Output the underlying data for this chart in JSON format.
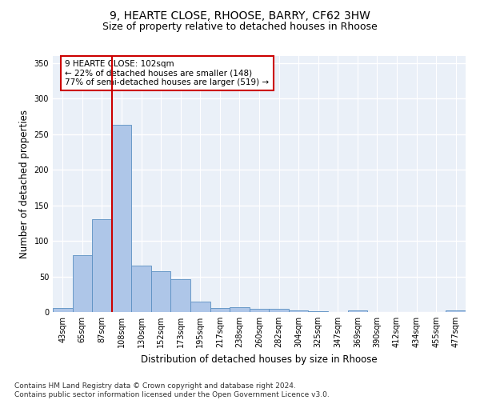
{
  "title": "9, HEARTE CLOSE, RHOOSE, BARRY, CF62 3HW",
  "subtitle": "Size of property relative to detached houses in Rhoose",
  "xlabel": "Distribution of detached houses by size in Rhoose",
  "ylabel": "Number of detached properties",
  "categories": [
    "43sqm",
    "65sqm",
    "87sqm",
    "108sqm",
    "130sqm",
    "152sqm",
    "173sqm",
    "195sqm",
    "217sqm",
    "238sqm",
    "260sqm",
    "282sqm",
    "304sqm",
    "325sqm",
    "347sqm",
    "369sqm",
    "390sqm",
    "412sqm",
    "434sqm",
    "455sqm",
    "477sqm"
  ],
  "values": [
    6,
    80,
    130,
    263,
    65,
    57,
    46,
    15,
    6,
    7,
    4,
    5,
    2,
    1,
    0,
    2,
    0,
    0,
    0,
    0,
    2
  ],
  "bar_color": "#aec6e8",
  "bar_edge_color": "#5a8fc2",
  "vline_index": 3,
  "vline_color": "#cc0000",
  "annotation_text": "9 HEARTE CLOSE: 102sqm\n← 22% of detached houses are smaller (148)\n77% of semi-detached houses are larger (519) →",
  "annotation_box_color": "#ffffff",
  "annotation_box_edge": "#cc0000",
  "ylim": [
    0,
    360
  ],
  "yticks": [
    0,
    50,
    100,
    150,
    200,
    250,
    300,
    350
  ],
  "bg_color": "#eaf0f8",
  "grid_color": "#ffffff",
  "footer": "Contains HM Land Registry data © Crown copyright and database right 2024.\nContains public sector information licensed under the Open Government Licence v3.0.",
  "title_fontsize": 10,
  "subtitle_fontsize": 9,
  "xlabel_fontsize": 8.5,
  "ylabel_fontsize": 8.5,
  "tick_fontsize": 7,
  "footer_fontsize": 6.5,
  "annotation_fontsize": 7.5
}
